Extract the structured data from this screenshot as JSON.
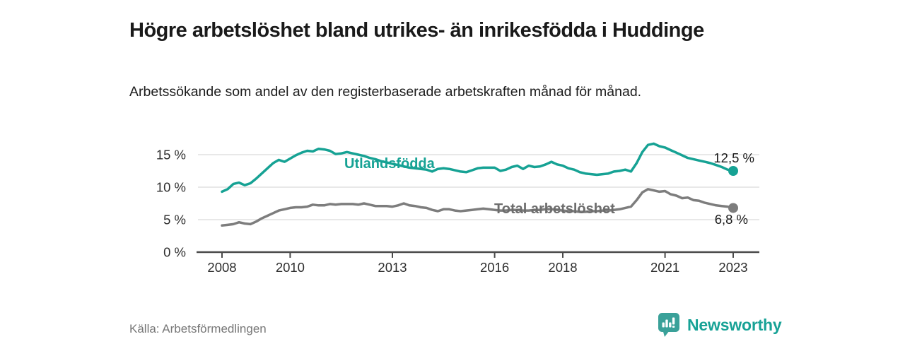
{
  "header": {
    "title": "Högre arbetslöshet bland utrikes- än inrikesfödda i Huddinge",
    "subtitle": "Arbetssökande som andel av den registerbaserade arbetskraften månad för månad."
  },
  "footer": {
    "source": "Källa: Arbetsförmedlingen",
    "brand_name": "Newsworthy",
    "logo_icon": "bar-chart-speech-bubble-icon"
  },
  "colors": {
    "background": "#ffffff",
    "title_text": "#1a1a1a",
    "axis": "#4a4a4a",
    "tick_label": "#2e2e2e",
    "gridline": "#d9d9d9",
    "value_label": "#1a1a1a",
    "source_text": "#777777",
    "brand_teal": "#17a296"
  },
  "chart_data": {
    "type": "line",
    "title": "Högre arbetslöshet bland utrikes- än inrikesfödda i Huddinge",
    "subtitle": "Arbetssökande som andel av den registerbaserade arbetskraften månad för månad.",
    "xlabel": "",
    "ylabel": "",
    "grid": true,
    "unit": "%",
    "x_start": 2008.0,
    "x_step_months": 2,
    "x_end": 2023.0,
    "xlim": [
      2007.25,
      2023.75
    ],
    "ylim": [
      0,
      17.5
    ],
    "x_tick_values": [
      2008,
      2010,
      2013,
      2016,
      2018,
      2021,
      2023
    ],
    "x_tick_labels": [
      "2008",
      "2010",
      "2013",
      "2016",
      "2018",
      "2021",
      "2023"
    ],
    "y_tick_values": [
      0,
      5,
      10,
      15
    ],
    "y_tick_labels": [
      "0 %",
      "5 %",
      "10 %",
      "15 %"
    ],
    "series": [
      {
        "name": "Utlandsfödda",
        "color": "#16a294",
        "label_color": "#16a294",
        "end_label": "12,5 %",
        "end_value": 12.5,
        "values": [
          9.3,
          9.7,
          10.5,
          10.7,
          10.3,
          10.6,
          11.3,
          12.1,
          12.9,
          13.7,
          14.2,
          13.9,
          14.4,
          14.9,
          15.3,
          15.6,
          15.5,
          15.9,
          15.8,
          15.6,
          15.1,
          15.2,
          15.4,
          15.2,
          15.0,
          14.8,
          14.5,
          14.3,
          14.0,
          13.8,
          13.6,
          13.4,
          13.2,
          13.0,
          12.9,
          12.8,
          12.7,
          12.4,
          12.8,
          12.9,
          12.8,
          12.6,
          12.4,
          12.3,
          12.6,
          12.9,
          13.0,
          13.0,
          13.0,
          12.5,
          12.7,
          13.1,
          13.3,
          12.8,
          13.3,
          13.1,
          13.2,
          13.5,
          13.9,
          13.5,
          13.3,
          12.9,
          12.7,
          12.3,
          12.1,
          12.0,
          11.9,
          12.0,
          12.1,
          12.4,
          12.5,
          12.7,
          12.4,
          13.7,
          15.4,
          16.5,
          16.7,
          16.3,
          16.1,
          15.7,
          15.3,
          14.9,
          14.5,
          14.3,
          14.1,
          13.9,
          13.7,
          13.4,
          13.1,
          12.7,
          12.5
        ]
      },
      {
        "name": "Total arbetslöshet",
        "color": "#7d7d7d",
        "label_color": "#6d6d6d",
        "end_label": "6,8 %",
        "end_value": 6.8,
        "values": [
          4.1,
          4.2,
          4.3,
          4.6,
          4.4,
          4.3,
          4.7,
          5.2,
          5.6,
          6.0,
          6.4,
          6.6,
          6.8,
          6.9,
          6.9,
          7.0,
          7.3,
          7.2,
          7.2,
          7.4,
          7.3,
          7.4,
          7.4,
          7.4,
          7.3,
          7.5,
          7.3,
          7.1,
          7.1,
          7.1,
          7.0,
          7.2,
          7.5,
          7.2,
          7.1,
          6.9,
          6.8,
          6.5,
          6.3,
          6.6,
          6.6,
          6.4,
          6.3,
          6.4,
          6.5,
          6.6,
          6.7,
          6.6,
          6.5,
          6.4,
          6.4,
          6.5,
          6.5,
          6.4,
          6.4,
          6.5,
          6.5,
          6.6,
          6.6,
          6.5,
          6.4,
          6.3,
          6.3,
          6.2,
          6.2,
          6.3,
          6.3,
          6.4,
          6.4,
          6.5,
          6.6,
          6.8,
          7.0,
          8.0,
          9.2,
          9.7,
          9.5,
          9.3,
          9.4,
          8.9,
          8.7,
          8.3,
          8.4,
          8.0,
          7.9,
          7.6,
          7.4,
          7.2,
          7.1,
          7.0,
          6.8
        ]
      }
    ],
    "legend_position": "inline-labels"
  }
}
